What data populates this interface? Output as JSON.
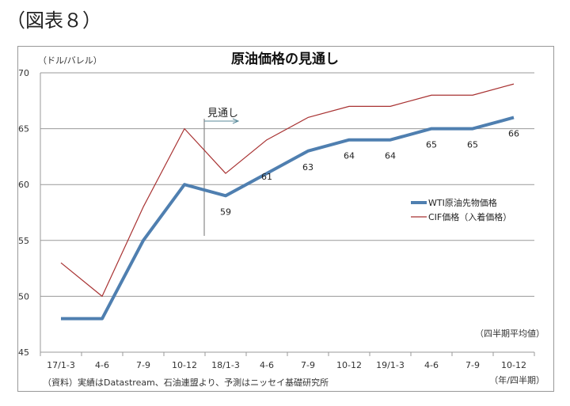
{
  "figure_label": "（図表８）",
  "chart_data": {
    "type": "line",
    "title": "原油価格の見通し",
    "ylabel": "（ドル/バレル）",
    "xlabel": "（年/四半期）",
    "unit_note": "（四半期平均値）",
    "source": "（資料）実績はDatastream、石油連盟より、予測はニッセイ基礎研究所",
    "forecast_marker": "見通し",
    "ylim": [
      45,
      70
    ],
    "yticks": [
      45,
      50,
      55,
      60,
      65,
      70
    ],
    "grid": true,
    "legend_position": "right",
    "categories": [
      "17/1-3",
      "4-6",
      "7-9",
      "10-12",
      "18/1-3",
      "4-6",
      "7-9",
      "10-12",
      "19/1-3",
      "4-6",
      "7-9",
      "10-12"
    ],
    "series": [
      {
        "name": "WTI原油先物価格",
        "color": "#4f7fb0",
        "values": [
          48,
          48,
          55,
          60,
          59,
          61,
          63,
          64,
          64,
          65,
          65,
          66
        ],
        "labels_from_index": 4
      },
      {
        "name": "CIF価格（入着価格）",
        "color": "#a83232",
        "values": [
          53,
          50,
          58,
          65,
          61,
          64,
          66,
          67,
          67,
          68,
          68,
          69
        ]
      }
    ]
  }
}
